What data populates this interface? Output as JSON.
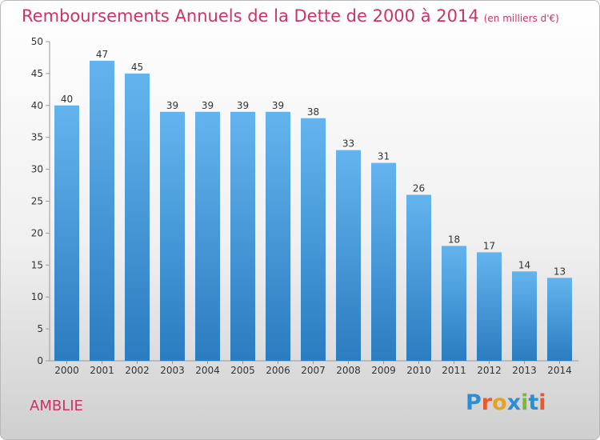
{
  "header": {
    "title": "Remboursements Annuels de la Dette de 2000 à 2014",
    "unit": "(en milliers d'€)"
  },
  "commune": "AMBLIE",
  "brand": {
    "logo_text": "Proxiti"
  },
  "colors": {
    "title": "#cc3366",
    "bar_top": "#63b4ee",
    "bar_bottom": "#2b7cc0"
  },
  "chart_data": {
    "type": "bar",
    "title": "Remboursements Annuels de la Dette de 2000 à 2014",
    "xlabel": "",
    "ylabel": "",
    "categories": [
      "2000",
      "2001",
      "2002",
      "2003",
      "2004",
      "2005",
      "2006",
      "2007",
      "2008",
      "2009",
      "2010",
      "2011",
      "2012",
      "2013",
      "2014"
    ],
    "values": [
      40,
      47,
      45,
      39,
      39,
      39,
      39,
      38,
      33,
      31,
      26,
      18,
      17,
      14,
      13
    ],
    "ylim": [
      0,
      50
    ],
    "yticks": [
      0,
      5,
      10,
      15,
      20,
      25,
      30,
      35,
      40,
      45,
      50
    ],
    "grid": false
  }
}
